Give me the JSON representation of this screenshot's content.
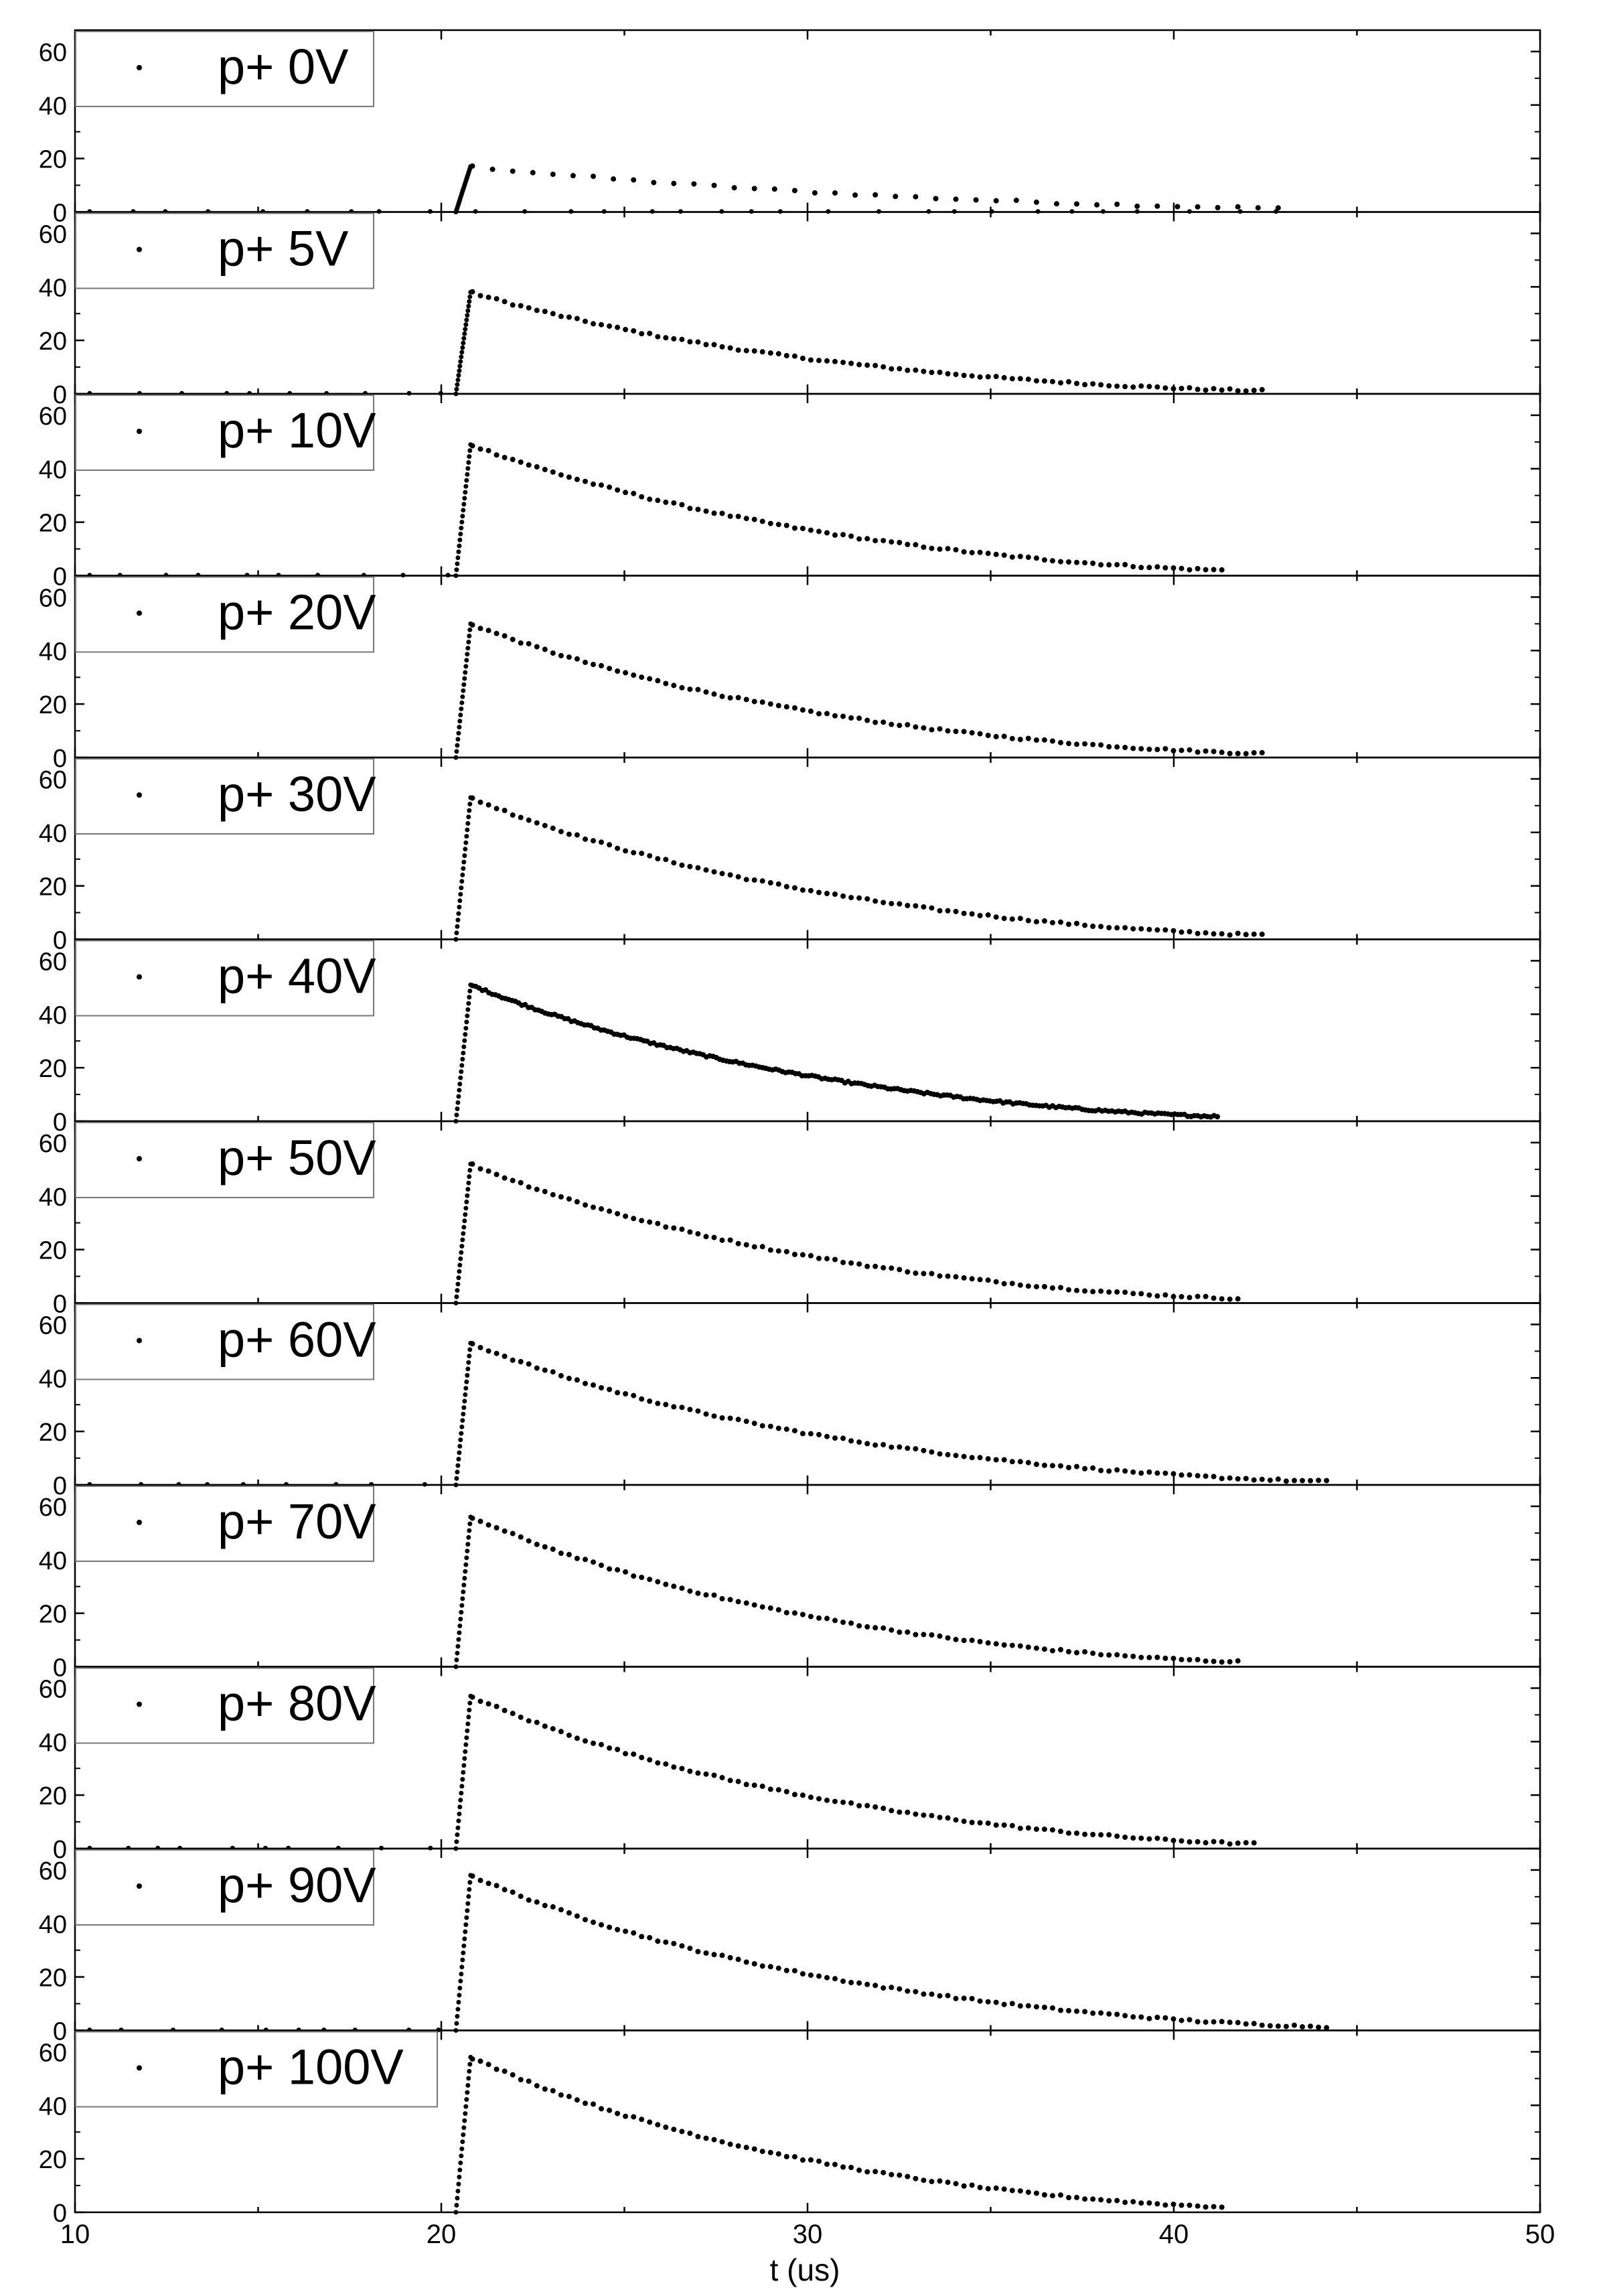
{
  "chart_data": {
    "type": "scatter",
    "xlabel": "t (us)",
    "xlim": [
      10,
      50
    ],
    "xticks": [
      "10",
      "20",
      "30",
      "40",
      "50"
    ],
    "ylim": [
      0,
      68
    ],
    "yticks": [
      "0",
      "20",
      "40",
      "60"
    ],
    "legend_position": "top-left",
    "grid": false,
    "marker_color": "#000000",
    "panels": [
      {
        "label": "p+ 0V",
        "peak": 17,
        "rise_start": 20.4,
        "peak_t": 20.8,
        "decay_end": 43.0,
        "decay_tau": 12.0,
        "noise_to": 43.5,
        "sparse": true
      },
      {
        "label": "p+ 5V",
        "peak": 38,
        "rise_start": 20.4,
        "peak_t": 20.8,
        "decay_end": 42.5,
        "decay_tau": 7.5,
        "noise_to": 20.2,
        "sparse": false
      },
      {
        "label": "p+ 10V",
        "peak": 49,
        "rise_start": 20.4,
        "peak_t": 20.8,
        "decay_end": 41.5,
        "decay_tau": 8.0,
        "noise_to": 20.2,
        "sparse": false
      },
      {
        "label": "p+ 20V",
        "peak": 50,
        "rise_start": 20.4,
        "peak_t": 20.8,
        "decay_end": 42.5,
        "decay_tau": 7.5,
        "noise_to": 0,
        "sparse": false
      },
      {
        "label": "p+ 30V",
        "peak": 53,
        "rise_start": 20.4,
        "peak_t": 20.8,
        "decay_end": 42.5,
        "decay_tau": 7.5,
        "noise_to": 0,
        "sparse": false
      },
      {
        "label": "p+ 40V",
        "peak": 51,
        "rise_start": 20.4,
        "peak_t": 20.8,
        "decay_end": 41.2,
        "decay_tau": 7.5,
        "noise_to": 0,
        "sparse": false,
        "dense": true
      },
      {
        "label": "p+ 50V",
        "peak": 52,
        "rise_start": 20.4,
        "peak_t": 20.8,
        "decay_end": 41.8,
        "decay_tau": 7.5,
        "noise_to": 0,
        "sparse": false
      },
      {
        "label": "p+ 60V",
        "peak": 53,
        "rise_start": 20.4,
        "peak_t": 20.8,
        "decay_end": 44.2,
        "decay_tau": 7.5,
        "noise_to": 20.2,
        "sparse": false
      },
      {
        "label": "p+ 70V",
        "peak": 56,
        "rise_start": 20.4,
        "peak_t": 20.8,
        "decay_end": 41.8,
        "decay_tau": 7.5,
        "noise_to": 0,
        "sparse": false
      },
      {
        "label": "p+ 80V",
        "peak": 57,
        "rise_start": 20.4,
        "peak_t": 20.8,
        "decay_end": 42.2,
        "decay_tau": 7.5,
        "noise_to": 20.2,
        "sparse": false
      },
      {
        "label": "p+ 90V",
        "peak": 58,
        "rise_start": 20.4,
        "peak_t": 20.8,
        "decay_end": 44.2,
        "decay_tau": 7.5,
        "noise_to": 20.2,
        "sparse": false
      },
      {
        "label": "p+ 100V",
        "peak": 58,
        "rise_start": 20.4,
        "peak_t": 20.8,
        "decay_end": 41.5,
        "decay_tau": 7.5,
        "noise_to": 0,
        "sparse": false
      }
    ]
  }
}
